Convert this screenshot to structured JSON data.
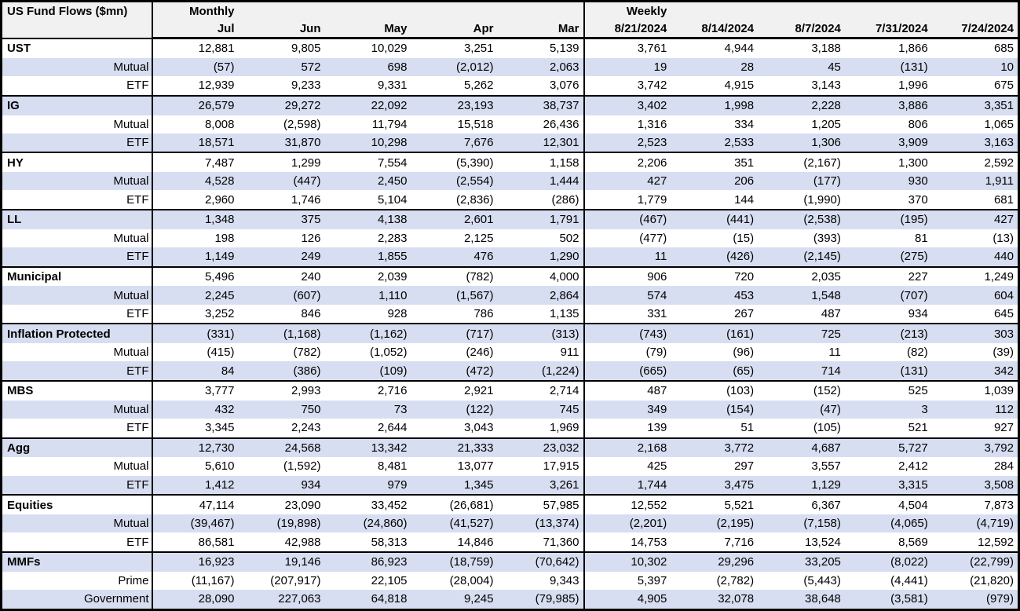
{
  "colors": {
    "stripe_row_bg": "#d8def1",
    "plain_row_bg": "#ffffff",
    "header_bg": "#f1f1f1",
    "border": "#000000",
    "text": "#000000"
  },
  "chart_data": {
    "type": "table",
    "title": "US Fund Flows ($mn)",
    "column_groups": [
      {
        "label": "Monthly",
        "columns": [
          "Jul",
          "Jun",
          "May",
          "Apr",
          "Mar"
        ]
      },
      {
        "label": "Weekly",
        "columns": [
          "8/21/2024",
          "8/14/2024",
          "8/7/2024",
          "7/31/2024",
          "7/24/2024"
        ]
      }
    ],
    "rows": [
      {
        "label": "UST",
        "level": "category",
        "values": [
          "12,881",
          "9,805",
          "10,029",
          "3,251",
          "5,139",
          "3,761",
          "4,944",
          "3,188",
          "1,866",
          "685"
        ]
      },
      {
        "label": "Mutual",
        "level": "sub",
        "values": [
          "(57)",
          "572",
          "698",
          "(2,012)",
          "2,063",
          "19",
          "28",
          "45",
          "(131)",
          "10"
        ]
      },
      {
        "label": "ETF",
        "level": "sub",
        "values": [
          "12,939",
          "9,233",
          "9,331",
          "5,262",
          "3,076",
          "3,742",
          "4,915",
          "3,143",
          "1,996",
          "675"
        ]
      },
      {
        "label": "IG",
        "level": "category",
        "values": [
          "26,579",
          "29,272",
          "22,092",
          "23,193",
          "38,737",
          "3,402",
          "1,998",
          "2,228",
          "3,886",
          "3,351"
        ]
      },
      {
        "label": "Mutual",
        "level": "sub",
        "values": [
          "8,008",
          "(2,598)",
          "11,794",
          "15,518",
          "26,436",
          "1,316",
          "334",
          "1,205",
          "806",
          "1,065"
        ]
      },
      {
        "label": "ETF",
        "level": "sub",
        "values": [
          "18,571",
          "31,870",
          "10,298",
          "7,676",
          "12,301",
          "2,523",
          "2,533",
          "1,306",
          "3,909",
          "3,163"
        ]
      },
      {
        "label": "HY",
        "level": "category",
        "values": [
          "7,487",
          "1,299",
          "7,554",
          "(5,390)",
          "1,158",
          "2,206",
          "351",
          "(2,167)",
          "1,300",
          "2,592"
        ]
      },
      {
        "label": "Mutual",
        "level": "sub",
        "values": [
          "4,528",
          "(447)",
          "2,450",
          "(2,554)",
          "1,444",
          "427",
          "206",
          "(177)",
          "930",
          "1,911"
        ]
      },
      {
        "label": "ETF",
        "level": "sub",
        "values": [
          "2,960",
          "1,746",
          "5,104",
          "(2,836)",
          "(286)",
          "1,779",
          "144",
          "(1,990)",
          "370",
          "681"
        ]
      },
      {
        "label": "LL",
        "level": "category",
        "values": [
          "1,348",
          "375",
          "4,138",
          "2,601",
          "1,791",
          "(467)",
          "(441)",
          "(2,538)",
          "(195)",
          "427"
        ]
      },
      {
        "label": "Mutual",
        "level": "sub",
        "values": [
          "198",
          "126",
          "2,283",
          "2,125",
          "502",
          "(477)",
          "(15)",
          "(393)",
          "81",
          "(13)"
        ]
      },
      {
        "label": "ETF",
        "level": "sub",
        "values": [
          "1,149",
          "249",
          "1,855",
          "476",
          "1,290",
          "11",
          "(426)",
          "(2,145)",
          "(275)",
          "440"
        ]
      },
      {
        "label": "Municipal",
        "level": "category",
        "values": [
          "5,496",
          "240",
          "2,039",
          "(782)",
          "4,000",
          "906",
          "720",
          "2,035",
          "227",
          "1,249"
        ]
      },
      {
        "label": "Mutual",
        "level": "sub",
        "values": [
          "2,245",
          "(607)",
          "1,110",
          "(1,567)",
          "2,864",
          "574",
          "453",
          "1,548",
          "(707)",
          "604"
        ]
      },
      {
        "label": "ETF",
        "level": "sub",
        "values": [
          "3,252",
          "846",
          "928",
          "786",
          "1,135",
          "331",
          "267",
          "487",
          "934",
          "645"
        ]
      },
      {
        "label": "Inflation Protected",
        "level": "category",
        "values": [
          "(331)",
          "(1,168)",
          "(1,162)",
          "(717)",
          "(313)",
          "(743)",
          "(161)",
          "725",
          "(213)",
          "303"
        ]
      },
      {
        "label": "Mutual",
        "level": "sub",
        "values": [
          "(415)",
          "(782)",
          "(1,052)",
          "(246)",
          "911",
          "(79)",
          "(96)",
          "11",
          "(82)",
          "(39)"
        ]
      },
      {
        "label": "ETF",
        "level": "sub",
        "values": [
          "84",
          "(386)",
          "(109)",
          "(472)",
          "(1,224)",
          "(665)",
          "(65)",
          "714",
          "(131)",
          "342"
        ]
      },
      {
        "label": "MBS",
        "level": "category",
        "values": [
          "3,777",
          "2,993",
          "2,716",
          "2,921",
          "2,714",
          "487",
          "(103)",
          "(152)",
          "525",
          "1,039"
        ]
      },
      {
        "label": "Mutual",
        "level": "sub",
        "values": [
          "432",
          "750",
          "73",
          "(122)",
          "745",
          "349",
          "(154)",
          "(47)",
          "3",
          "112"
        ]
      },
      {
        "label": "ETF",
        "level": "sub",
        "values": [
          "3,345",
          "2,243",
          "2,644",
          "3,043",
          "1,969",
          "139",
          "51",
          "(105)",
          "521",
          "927"
        ]
      },
      {
        "label": "Agg",
        "level": "category",
        "values": [
          "12,730",
          "24,568",
          "13,342",
          "21,333",
          "23,032",
          "2,168",
          "3,772",
          "4,687",
          "5,727",
          "3,792"
        ]
      },
      {
        "label": "Mutual",
        "level": "sub",
        "values": [
          "5,610",
          "(1,592)",
          "8,481",
          "13,077",
          "17,915",
          "425",
          "297",
          "3,557",
          "2,412",
          "284"
        ]
      },
      {
        "label": "ETF",
        "level": "sub",
        "values": [
          "1,412",
          "934",
          "979",
          "1,345",
          "3,261",
          "1,744",
          "3,475",
          "1,129",
          "3,315",
          "3,508"
        ]
      },
      {
        "label": "Equities",
        "level": "category",
        "values": [
          "47,114",
          "23,090",
          "33,452",
          "(26,681)",
          "57,985",
          "12,552",
          "5,521",
          "6,367",
          "4,504",
          "7,873"
        ]
      },
      {
        "label": "Mutual",
        "level": "sub",
        "values": [
          "(39,467)",
          "(19,898)",
          "(24,860)",
          "(41,527)",
          "(13,374)",
          "(2,201)",
          "(2,195)",
          "(7,158)",
          "(4,065)",
          "(4,719)"
        ]
      },
      {
        "label": "ETF",
        "level": "sub",
        "values": [
          "86,581",
          "42,988",
          "58,313",
          "14,846",
          "71,360",
          "14,753",
          "7,716",
          "13,524",
          "8,569",
          "12,592"
        ]
      },
      {
        "label": "MMFs",
        "level": "category",
        "values": [
          "16,923",
          "19,146",
          "86,923",
          "(18,759)",
          "(70,642)",
          "10,302",
          "29,296",
          "33,205",
          "(8,022)",
          "(22,799)"
        ]
      },
      {
        "label": "Prime",
        "level": "sub",
        "values": [
          "(11,167)",
          "(207,917)",
          "22,105",
          "(28,004)",
          "9,343",
          "5,397",
          "(2,782)",
          "(5,443)",
          "(4,441)",
          "(21,820)"
        ]
      },
      {
        "label": "Government",
        "level": "sub",
        "values": [
          "28,090",
          "227,063",
          "64,818",
          "9,245",
          "(79,985)",
          "4,905",
          "32,078",
          "38,648",
          "(3,581)",
          "(979)"
        ]
      }
    ]
  }
}
